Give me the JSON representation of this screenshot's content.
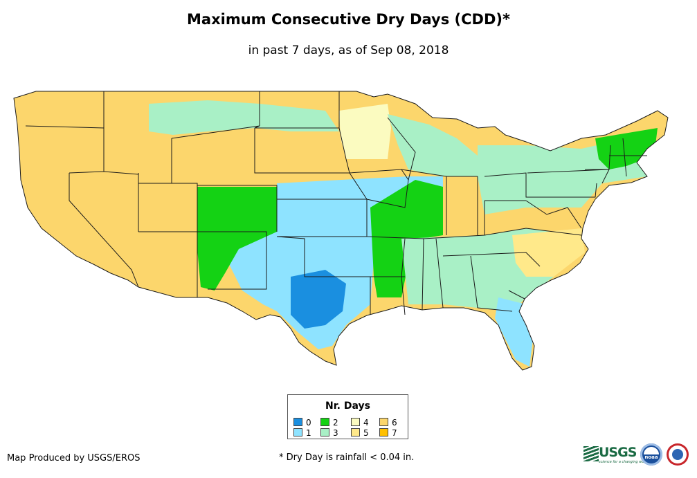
{
  "title": "Maximum Consecutive Dry Days (CDD)*",
  "subtitle": "in past 7 days, as of Sep 08, 2018",
  "legend": {
    "title": "Nr. Days",
    "items": [
      {
        "label": "0",
        "color": "#1a8fe0"
      },
      {
        "label": "1",
        "color": "#8ee3ff"
      },
      {
        "label": "2",
        "color": "#14d214"
      },
      {
        "label": "3",
        "color": "#a9f0c6"
      },
      {
        "label": "4",
        "color": "#fbfbc0"
      },
      {
        "label": "5",
        "color": "#ffe98a"
      },
      {
        "label": "6",
        "color": "#fcd66c"
      },
      {
        "label": "7",
        "color": "#ffc000"
      }
    ]
  },
  "credit": "Map Produced by USGS/EROS",
  "footnote": "* Dry Day is rainfall < 0.04 in.",
  "logos": {
    "usgs": "USGS",
    "usgs_tagline": "science for a changing world",
    "noaa": "noaa",
    "nws": "national-weather-service-logo"
  },
  "colors": {
    "state_border": "#1a1a1a",
    "background": "#ffffff"
  },
  "regions": [
    {
      "name": "west-and-plains",
      "days": "6"
    },
    {
      "name": "northern-plains-green",
      "days": "3"
    },
    {
      "name": "minnesota",
      "days": "4"
    },
    {
      "name": "michigan",
      "days": "3"
    },
    {
      "name": "great-lakes-and-northeast",
      "days": "3"
    },
    {
      "name": "texas-oklahoma-kansas",
      "days": "1"
    },
    {
      "name": "east-texas",
      "days": "0"
    },
    {
      "name": "southwest-monsoon",
      "days": "2"
    },
    {
      "name": "mid-mississippi",
      "days": "2"
    },
    {
      "name": "southeast",
      "days": "3"
    },
    {
      "name": "carolinas-virginia",
      "days": "5"
    },
    {
      "name": "new-england",
      "days": "2"
    },
    {
      "name": "florida",
      "days": "1"
    }
  ]
}
